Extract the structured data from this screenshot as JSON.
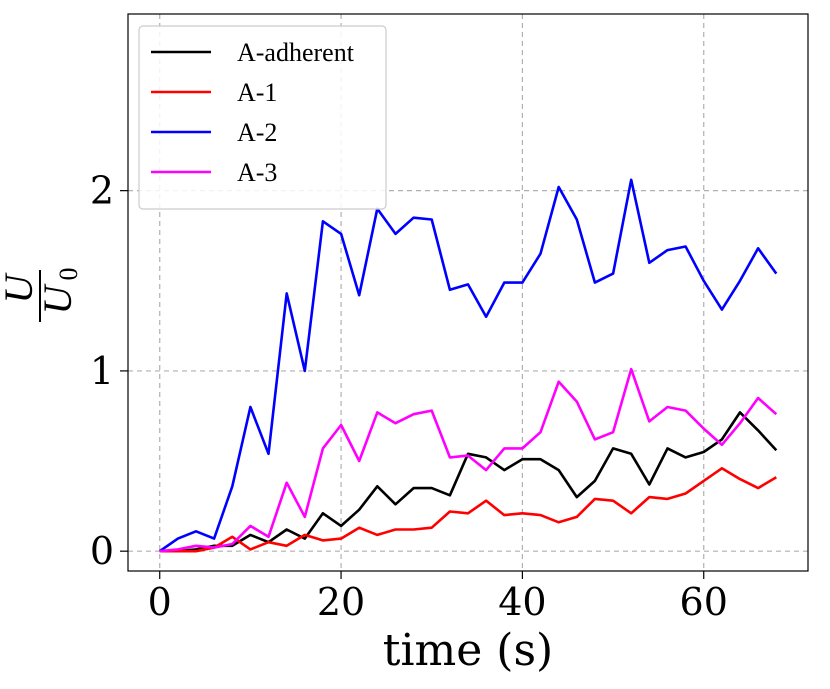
{
  "chart_data": {
    "type": "line",
    "title": "",
    "xlabel": "time (s)",
    "ylabel": {
      "numerator": "U",
      "denominator_base": "U",
      "denominator_sub": "0"
    },
    "xlim": [
      -3.5,
      71.5
    ],
    "ylim": [
      -0.11,
      2.98
    ],
    "xticks": [
      0,
      20,
      40,
      60
    ],
    "xtick_labels": [
      "0",
      "20",
      "40",
      "60"
    ],
    "yticks": [
      0,
      1,
      2
    ],
    "ytick_labels": [
      "0",
      "1",
      "2"
    ],
    "grid": true,
    "legend_position": "top-left",
    "x": [
      0,
      2,
      4,
      6,
      8,
      10,
      12,
      14,
      16,
      18,
      20,
      22,
      24,
      26,
      28,
      30,
      32,
      34,
      36,
      38,
      40,
      42,
      44,
      46,
      48,
      50,
      52,
      54,
      56,
      58,
      60,
      62,
      64,
      66,
      68
    ],
    "series": [
      {
        "name": "A-adherent",
        "color": "#000000",
        "values": [
          0.0,
          0.0,
          0.01,
          0.03,
          0.03,
          0.09,
          0.05,
          0.12,
          0.07,
          0.21,
          0.14,
          0.23,
          0.36,
          0.26,
          0.35,
          0.35,
          0.31,
          0.54,
          0.52,
          0.45,
          0.51,
          0.51,
          0.45,
          0.3,
          0.39,
          0.57,
          0.54,
          0.37,
          0.57,
          0.52,
          0.55,
          0.62,
          0.77,
          0.67,
          0.56
        ]
      },
      {
        "name": "A-1",
        "color": "#ff0000",
        "values": [
          0.0,
          0.0,
          0.0,
          0.02,
          0.08,
          0.01,
          0.05,
          0.03,
          0.09,
          0.06,
          0.07,
          0.13,
          0.09,
          0.12,
          0.12,
          0.13,
          0.22,
          0.21,
          0.28,
          0.2,
          0.21,
          0.2,
          0.16,
          0.19,
          0.29,
          0.28,
          0.21,
          0.3,
          0.29,
          0.32,
          0.39,
          0.46,
          0.4,
          0.35,
          0.41
        ]
      },
      {
        "name": "A-2",
        "color": "#0000ff",
        "values": [
          0.0,
          0.07,
          0.11,
          0.07,
          0.36,
          0.8,
          0.54,
          1.43,
          1.0,
          1.83,
          1.76,
          1.42,
          1.9,
          1.76,
          1.85,
          1.84,
          1.45,
          1.48,
          1.3,
          1.49,
          1.49,
          1.65,
          2.02,
          1.84,
          1.49,
          1.54,
          2.06,
          1.6,
          1.67,
          1.69,
          1.5,
          1.34,
          1.5,
          1.68,
          1.54
        ]
      },
      {
        "name": "A-3",
        "color": "#ff00ff",
        "values": [
          0.0,
          0.01,
          0.03,
          0.02,
          0.04,
          0.14,
          0.08,
          0.38,
          0.19,
          0.57,
          0.7,
          0.5,
          0.77,
          0.71,
          0.76,
          0.78,
          0.52,
          0.53,
          0.45,
          0.57,
          0.57,
          0.66,
          0.94,
          0.83,
          0.62,
          0.66,
          1.01,
          0.72,
          0.8,
          0.78,
          0.68,
          0.59,
          0.71,
          0.85,
          0.76
        ]
      }
    ]
  }
}
